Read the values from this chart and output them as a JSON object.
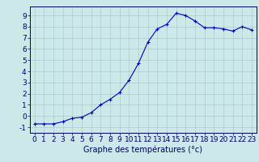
{
  "x": [
    0,
    1,
    2,
    3,
    4,
    5,
    6,
    7,
    8,
    9,
    10,
    11,
    12,
    13,
    14,
    15,
    16,
    17,
    18,
    19,
    20,
    21,
    22,
    23
  ],
  "y": [
    -0.7,
    -0.7,
    -0.7,
    -0.5,
    -0.2,
    -0.1,
    0.3,
    1.0,
    1.5,
    2.1,
    3.2,
    4.7,
    6.6,
    7.8,
    8.2,
    9.2,
    9.0,
    8.5,
    7.9,
    7.9,
    7.8,
    7.6,
    8.0,
    7.7
  ],
  "xlabel": "Graphe des températures (°c)",
  "xlim": [
    -0.5,
    23.5
  ],
  "ylim": [
    -1.5,
    9.8
  ],
  "xticks": [
    0,
    1,
    2,
    3,
    4,
    5,
    6,
    7,
    8,
    9,
    10,
    11,
    12,
    13,
    14,
    15,
    16,
    17,
    18,
    19,
    20,
    21,
    22,
    23
  ],
  "yticks": [
    -1,
    0,
    1,
    2,
    3,
    4,
    5,
    6,
    7,
    8,
    9
  ],
  "line_color": "#0000bb",
  "marker": "+",
  "bg_color": "#cce8e8",
  "grid_color": "#aacccc",
  "axis_color": "#000066",
  "xlabel_fontsize": 7,
  "tick_fontsize": 6.5
}
